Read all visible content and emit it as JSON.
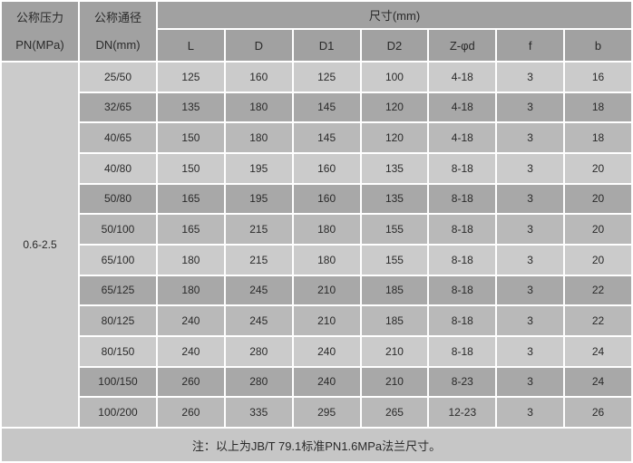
{
  "table": {
    "header": {
      "col1_line1": "公称压力",
      "col1_line2": "PN(MPa)",
      "col2_line1": "公称通径",
      "col2_line2": "DN(mm)",
      "size_group": "尺寸(mm)",
      "size_columns": [
        "L",
        "D",
        "D1",
        "D2",
        "Z-φd",
        "f",
        "b"
      ]
    },
    "pn_value": "0.6-2.5",
    "rows": [
      {
        "dn": "25/50",
        "l": "125",
        "d": "160",
        "d1": "125",
        "d2": "100",
        "z": "4-18",
        "f": "3",
        "b": "16"
      },
      {
        "dn": "32/65",
        "l": "135",
        "d": "180",
        "d1": "145",
        "d2": "120",
        "z": "4-18",
        "f": "3",
        "b": "18"
      },
      {
        "dn": "40/65",
        "l": "150",
        "d": "180",
        "d1": "145",
        "d2": "120",
        "z": "4-18",
        "f": "3",
        "b": "18"
      },
      {
        "dn": "40/80",
        "l": "150",
        "d": "195",
        "d1": "160",
        "d2": "135",
        "z": "8-18",
        "f": "3",
        "b": "20"
      },
      {
        "dn": "50/80",
        "l": "165",
        "d": "195",
        "d1": "160",
        "d2": "135",
        "z": "8-18",
        "f": "3",
        "b": "20"
      },
      {
        "dn": "50/100",
        "l": "165",
        "d": "215",
        "d1": "180",
        "d2": "155",
        "z": "8-18",
        "f": "3",
        "b": "20"
      },
      {
        "dn": "65/100",
        "l": "180",
        "d": "215",
        "d1": "180",
        "d2": "155",
        "z": "8-18",
        "f": "3",
        "b": "20"
      },
      {
        "dn": "65/125",
        "l": "180",
        "d": "245",
        "d1": "210",
        "d2": "185",
        "z": "8-18",
        "f": "3",
        "b": "22"
      },
      {
        "dn": "80/125",
        "l": "240",
        "d": "245",
        "d1": "210",
        "d2": "185",
        "z": "8-18",
        "f": "3",
        "b": "22"
      },
      {
        "dn": "80/150",
        "l": "240",
        "d": "280",
        "d1": "240",
        "d2": "210",
        "z": "8-18",
        "f": "3",
        "b": "24"
      },
      {
        "dn": "100/150",
        "l": "260",
        "d": "280",
        "d1": "240",
        "d2": "210",
        "z": "8-23",
        "f": "3",
        "b": "24"
      },
      {
        "dn": "100/200",
        "l": "260",
        "d": "335",
        "d1": "295",
        "d2": "265",
        "z": "12-23",
        "f": "3",
        "b": "26"
      }
    ],
    "note": "注：以上为JB/T 79.1标准PN1.6MPa法兰尺寸。"
  },
  "colors": {
    "header_bg": "#a1a1a1",
    "row_light_bg": "#cbcbcb",
    "row_dark_bg": "#a8a8a8",
    "row_medium_bg": "#b9b9b9",
    "footer_bg": "#c6c6c6",
    "gridline": "#ffffff",
    "text": "#2a2a2a"
  }
}
